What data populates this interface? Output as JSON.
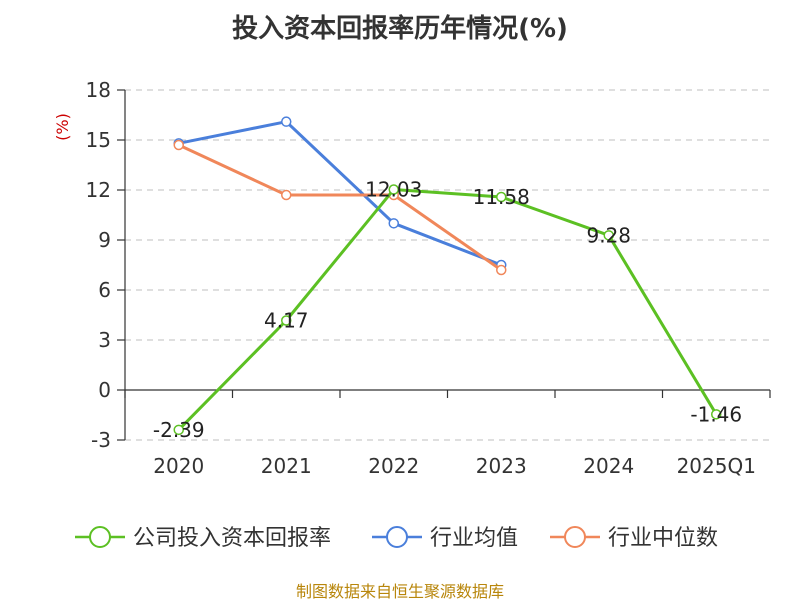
{
  "chart_data": {
    "type": "line",
    "title": "投入资本回报率历年情况(%)",
    "ylabel": "(%)",
    "categories": [
      "2020",
      "2021",
      "2022",
      "2023",
      "2024",
      "2025Q1"
    ],
    "ylim": [
      -3,
      18
    ],
    "yticks": [
      18,
      15,
      12,
      9,
      6,
      3,
      0,
      -3
    ],
    "grid": true,
    "legend_position": "bottom",
    "series": [
      {
        "name": "公司投入资本回报率",
        "color": "#5cc023",
        "values": [
          -2.39,
          4.17,
          12.03,
          11.58,
          9.28,
          -1.46
        ],
        "show_labels": true
      },
      {
        "name": "行业均值",
        "color": "#4a7fdb",
        "values": [
          14.8,
          16.1,
          10.0,
          7.5,
          null,
          null
        ],
        "show_labels": false
      },
      {
        "name": "行业中位数",
        "color": "#f0875a",
        "values": [
          14.7,
          11.7,
          11.7,
          7.2,
          null,
          null
        ],
        "show_labels": false
      }
    ],
    "data_labels": [
      "-2.39",
      "4.17",
      "12.03",
      "11.58",
      "9.28",
      "-1.46"
    ]
  },
  "source": "制图数据来自恒生聚源数据库"
}
